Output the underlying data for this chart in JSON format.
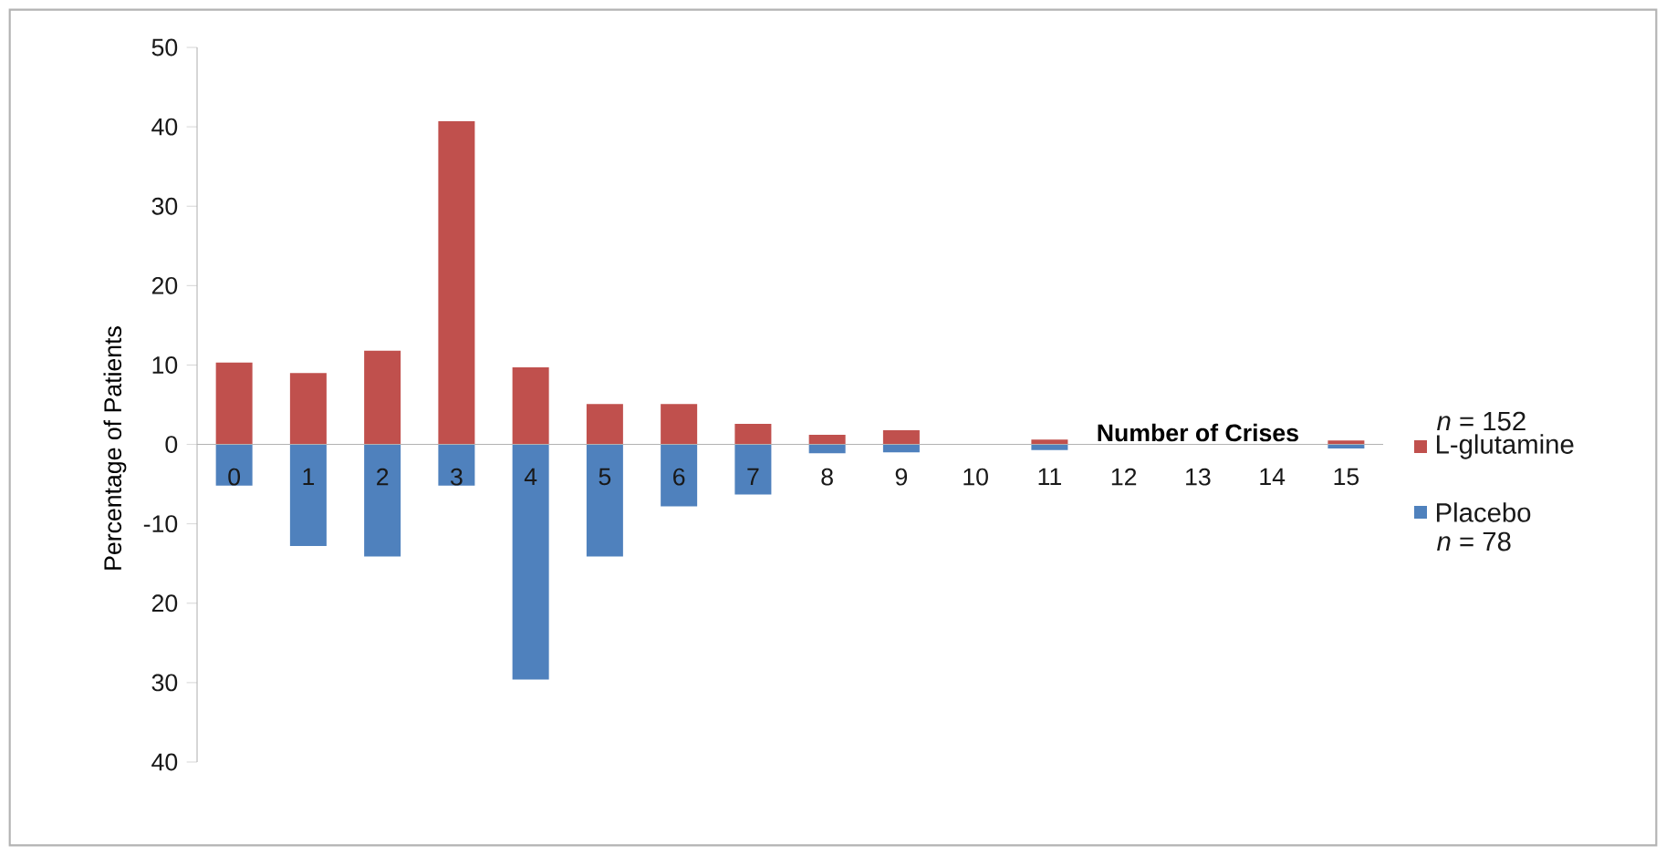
{
  "chart_data": {
    "type": "bar",
    "ylabel": "Percentage of Patients",
    "xlabel": "Number of Crises",
    "categories": [
      "0",
      "1",
      "2",
      "3",
      "4",
      "5",
      "6",
      "7",
      "8",
      "9",
      "10",
      "11",
      "12",
      "13",
      "14",
      "15"
    ],
    "series": [
      {
        "name": "L-glutamine",
        "color": "#c0504d",
        "values": [
          10.3,
          9.0,
          11.8,
          40.7,
          9.7,
          5.1,
          5.1,
          2.6,
          1.2,
          1.8,
          0,
          0.6,
          0,
          0,
          0,
          0.5
        ]
      },
      {
        "name": "Placebo",
        "color": "#4f81bd",
        "values": [
          -5.2,
          -12.8,
          -14.1,
          -5.2,
          -29.6,
          -14.1,
          -7.8,
          -6.3,
          -1.1,
          -1.0,
          0,
          -0.7,
          0,
          0,
          0,
          -0.5
        ]
      }
    ],
    "ylim": [
      -40,
      50
    ],
    "yticks": [
      50,
      40,
      30,
      20,
      10,
      0,
      -10,
      {
        "value": -20,
        "label": "20"
      },
      {
        "value": -30,
        "label": "30"
      },
      {
        "value": -40,
        "label": "40"
      }
    ],
    "legend": "right",
    "stacked": true,
    "annotations": [
      "*n* = 152",
      "*n* = 78"
    ]
  }
}
